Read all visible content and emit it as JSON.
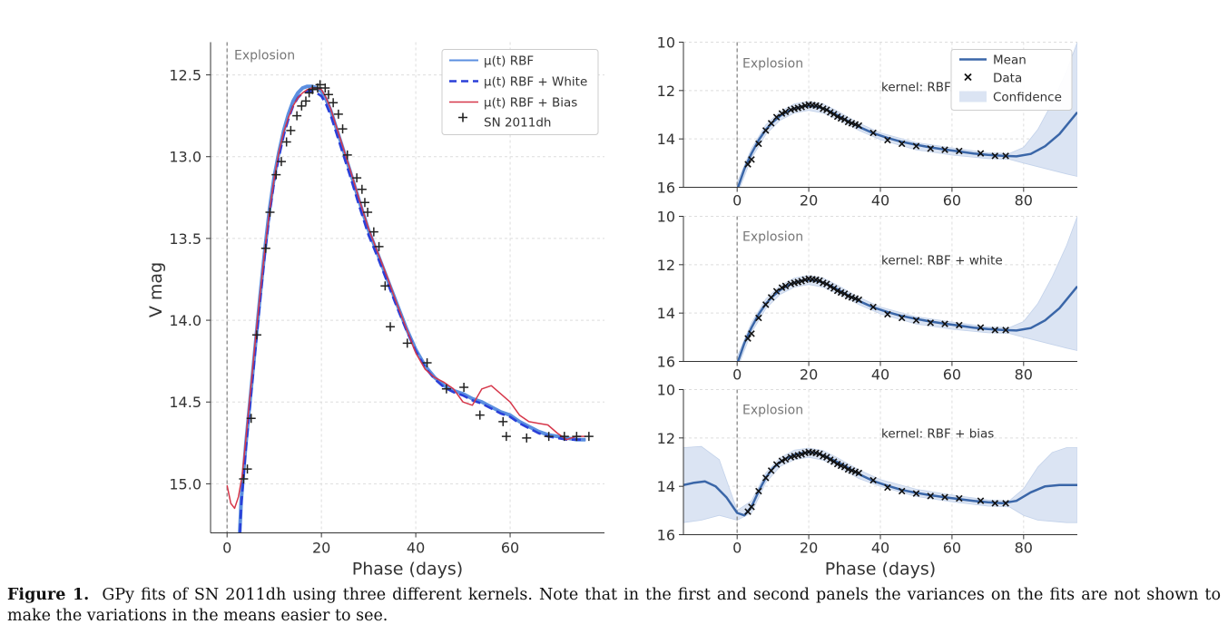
{
  "caption": {
    "label": "Figure 1.",
    "text": "GPy fits of SN 2011dh using three different kernels. Note that in the first and second panels the variances on the fits are not shown to make the variations in the means easier to see."
  },
  "colors": {
    "rbf": "#5b8fe0",
    "white": "#2a3fd8",
    "bias": "#d6374a",
    "mean": "#3a66a8",
    "band": "#dbe4f3",
    "marker": "#222222",
    "explosion": "#888888"
  },
  "chart_data": [
    {
      "type": "line",
      "panel": "main",
      "xlabel": "Phase (days)",
      "ylabel": "V mag",
      "xlim": [
        -3.5,
        80
      ],
      "ylim": [
        15.3,
        12.3
      ],
      "y_inverted": true,
      "xticks": [
        0,
        20,
        40,
        60
      ],
      "yticks": [
        12.5,
        13.0,
        13.5,
        14.0,
        14.5,
        15.0
      ],
      "ytick_labels": [
        "12.5",
        "13.0",
        "13.5",
        "14.0",
        "14.5",
        "15.0"
      ],
      "grid": true,
      "legend_position": "top-right",
      "annotation": "Explosion",
      "explosion_x": 0,
      "series": [
        {
          "name": "μ(t) RBF",
          "style": "solid",
          "x": [
            2.6,
            3,
            4,
            5,
            6,
            7,
            8,
            9,
            10,
            11,
            12,
            13,
            14,
            15,
            16,
            17,
            18,
            19,
            20,
            21,
            22,
            24,
            26,
            28,
            30,
            32,
            34,
            36,
            38,
            40,
            42,
            44,
            46,
            48,
            50,
            52,
            54,
            56,
            58,
            60,
            62,
            64,
            66,
            68,
            70,
            72,
            74,
            76
          ],
          "y": [
            15.35,
            15.1,
            14.75,
            14.45,
            14.15,
            13.85,
            13.57,
            13.32,
            13.12,
            12.97,
            12.84,
            12.74,
            12.66,
            12.61,
            12.58,
            12.57,
            12.57,
            12.58,
            12.6,
            12.65,
            12.72,
            12.9,
            13.08,
            13.27,
            13.45,
            13.6,
            13.75,
            13.9,
            14.05,
            14.18,
            14.28,
            14.35,
            14.4,
            14.43,
            14.45,
            14.48,
            14.5,
            14.53,
            14.56,
            14.58,
            14.62,
            14.65,
            14.68,
            14.7,
            14.71,
            14.72,
            14.73,
            14.73
          ]
        },
        {
          "name": "μ(t) RBF + White",
          "style": "dashed",
          "x": [
            2.6,
            3,
            4,
            5,
            6,
            7,
            8,
            9,
            10,
            11,
            12,
            13,
            14,
            15,
            16,
            17,
            18,
            19,
            20,
            21,
            22,
            24,
            26,
            28,
            30,
            32,
            34,
            36,
            38,
            40,
            42,
            44,
            46,
            48,
            50,
            52,
            54,
            56,
            58,
            60,
            62,
            64,
            66,
            68,
            70,
            72,
            74,
            76
          ],
          "y": [
            15.38,
            15.13,
            14.78,
            14.48,
            14.18,
            13.88,
            13.6,
            13.35,
            13.15,
            13.0,
            12.87,
            12.77,
            12.69,
            12.64,
            12.61,
            12.6,
            12.6,
            12.61,
            12.63,
            12.68,
            12.75,
            12.93,
            13.11,
            13.3,
            13.48,
            13.62,
            13.77,
            13.92,
            14.06,
            14.19,
            14.29,
            14.36,
            14.41,
            14.44,
            14.46,
            14.49,
            14.51,
            14.54,
            14.57,
            14.59,
            14.63,
            14.66,
            14.69,
            14.71,
            14.72,
            14.73,
            14.73,
            14.73
          ]
        },
        {
          "name": "μ(t) RBF + Bias",
          "style": "solid",
          "x": [
            0,
            0.8,
            1.6,
            2.4,
            3.2,
            4,
            5,
            6,
            7,
            8,
            9,
            10,
            11,
            12,
            13,
            14,
            15,
            16,
            17,
            18,
            19,
            20,
            21,
            22,
            24,
            26,
            28,
            30,
            32,
            34,
            36,
            38,
            40,
            42,
            44,
            46,
            48,
            50,
            52,
            54,
            56,
            58,
            60,
            62,
            64,
            66,
            68,
            70,
            72,
            74,
            76
          ],
          "y": [
            15.01,
            15.12,
            15.15,
            15.08,
            14.95,
            14.72,
            14.42,
            14.12,
            13.84,
            13.57,
            13.33,
            13.13,
            12.97,
            12.85,
            12.76,
            12.69,
            12.64,
            12.61,
            12.59,
            12.58,
            12.58,
            12.59,
            12.64,
            12.71,
            12.89,
            13.07,
            13.26,
            13.44,
            13.59,
            13.74,
            13.9,
            14.05,
            14.2,
            14.3,
            14.35,
            14.38,
            14.42,
            14.5,
            14.52,
            14.42,
            14.4,
            14.45,
            14.5,
            14.58,
            14.62,
            14.63,
            14.64,
            14.69,
            14.73,
            14.71,
            14.71
          ]
        }
      ],
      "data_series": {
        "name": "SN 2011dh",
        "marker": "+",
        "x": [
          3.5,
          4.3,
          5.1,
          6.3,
          8.2,
          9.1,
          10.4,
          11.5,
          12.6,
          13.5,
          14.8,
          15.8,
          16.7,
          17.4,
          18.1,
          19.2,
          19.7,
          20.8,
          21.5,
          22.5,
          23.6,
          24.5,
          25.5,
          27.5,
          28.6,
          29.2,
          29.8,
          31.1,
          32.2,
          33.5,
          34.6,
          38.2,
          42.4,
          46.5,
          50.2,
          53.6,
          58.5,
          59.2,
          63.5,
          68.2,
          71.5,
          74.1,
          76.7
        ],
        "y": [
          14.97,
          14.91,
          14.6,
          14.09,
          13.56,
          13.34,
          13.11,
          13.03,
          12.91,
          12.84,
          12.75,
          12.69,
          12.66,
          12.61,
          12.59,
          12.58,
          12.56,
          12.58,
          12.62,
          12.67,
          12.74,
          12.83,
          12.99,
          13.13,
          13.2,
          13.28,
          13.34,
          13.46,
          13.55,
          13.79,
          14.04,
          14.14,
          14.26,
          14.42,
          14.41,
          14.58,
          14.62,
          14.71,
          14.72,
          14.71,
          14.71,
          14.71,
          14.71
        ]
      }
    },
    {
      "type": "line",
      "panel": "kernel-rbf",
      "kernel_label": "kernel: RBF",
      "xlim": [
        -15,
        95
      ],
      "ylim": [
        16,
        10
      ],
      "y_inverted": true,
      "xticks": [
        0,
        20,
        40,
        60,
        80
      ],
      "yticks": [
        10,
        12,
        14,
        16
      ],
      "annotation": "Explosion",
      "explosion_x": 0,
      "grid": true,
      "legend": [
        "Mean",
        "Data",
        "Confidence"
      ],
      "legend_position": "top-right",
      "mean": {
        "x": [
          0,
          2,
          4,
          6,
          8,
          10,
          12,
          14,
          16,
          18,
          20,
          22,
          24,
          26,
          28,
          30,
          34,
          38,
          42,
          46,
          50,
          54,
          58,
          62,
          66,
          70,
          74,
          78,
          82,
          86,
          90,
          95
        ],
        "y": [
          16.1,
          15.25,
          14.6,
          14.05,
          13.62,
          13.3,
          13.05,
          12.87,
          12.74,
          12.66,
          12.63,
          12.66,
          12.74,
          12.86,
          13.02,
          13.18,
          13.5,
          13.76,
          13.96,
          14.12,
          14.24,
          14.35,
          14.44,
          14.52,
          14.6,
          14.66,
          14.7,
          14.72,
          14.62,
          14.3,
          13.8,
          12.9
        ]
      },
      "confidence": {
        "x": [
          0,
          4,
          8,
          12,
          16,
          20,
          24,
          28,
          34,
          40,
          50,
          60,
          70,
          76,
          80,
          84,
          88,
          92,
          95
        ],
        "lower": [
          15.8,
          14.4,
          13.42,
          12.87,
          12.55,
          12.44,
          12.55,
          12.85,
          13.35,
          13.75,
          14.15,
          14.37,
          14.57,
          14.6,
          14.35,
          13.6,
          12.5,
          11.2,
          10.0
        ],
        "upper": [
          16.3,
          14.8,
          13.82,
          13.23,
          12.93,
          12.82,
          12.93,
          13.19,
          13.65,
          14.03,
          14.45,
          14.67,
          14.81,
          14.84,
          15.0,
          15.15,
          15.3,
          15.45,
          15.55
        ]
      },
      "data_x": [
        3,
        4,
        6,
        8,
        9.5,
        11,
        12.5,
        13.5,
        15,
        16,
        17,
        18,
        19,
        20,
        21,
        22,
        23,
        24,
        25,
        26,
        27,
        28,
        29,
        30,
        31,
        32,
        33,
        34,
        38,
        42,
        46,
        50,
        54,
        58,
        62,
        68,
        72,
        75
      ],
      "data_y": [
        15.05,
        14.85,
        14.2,
        13.65,
        13.35,
        13.1,
        12.95,
        12.88,
        12.8,
        12.75,
        12.72,
        12.68,
        12.62,
        12.58,
        12.6,
        12.62,
        12.66,
        12.75,
        12.8,
        12.9,
        12.98,
        13.08,
        13.15,
        13.2,
        13.3,
        13.35,
        13.4,
        13.45,
        13.75,
        14.05,
        14.2,
        14.3,
        14.4,
        14.45,
        14.5,
        14.6,
        14.7,
        14.7
      ]
    },
    {
      "type": "line",
      "panel": "kernel-rbf-white",
      "kernel_label": "kernel: RBF + white",
      "xlim": [
        -15,
        95
      ],
      "ylim": [
        16,
        10
      ],
      "y_inverted": true,
      "xticks": [
        0,
        20,
        40,
        60,
        80
      ],
      "yticks": [
        10,
        12,
        14,
        16
      ],
      "annotation": "Explosion",
      "explosion_x": 0,
      "grid": true,
      "mean": {
        "x": [
          0,
          2,
          4,
          6,
          8,
          10,
          12,
          14,
          16,
          18,
          20,
          22,
          24,
          26,
          28,
          30,
          34,
          38,
          42,
          46,
          50,
          54,
          58,
          62,
          66,
          70,
          74,
          78,
          82,
          86,
          90,
          95
        ],
        "y": [
          16.1,
          15.25,
          14.6,
          14.05,
          13.62,
          13.3,
          13.05,
          12.87,
          12.74,
          12.66,
          12.63,
          12.66,
          12.74,
          12.86,
          13.02,
          13.18,
          13.5,
          13.76,
          13.96,
          14.12,
          14.24,
          14.35,
          14.44,
          14.52,
          14.6,
          14.66,
          14.7,
          14.72,
          14.62,
          14.3,
          13.8,
          12.9
        ]
      },
      "confidence": {
        "x": [
          0,
          4,
          8,
          12,
          16,
          20,
          24,
          28,
          34,
          40,
          50,
          60,
          70,
          76,
          80,
          84,
          88,
          92,
          95
        ],
        "lower": [
          15.8,
          14.4,
          13.42,
          12.87,
          12.55,
          12.44,
          12.55,
          12.85,
          13.35,
          13.75,
          14.15,
          14.37,
          14.57,
          14.6,
          14.35,
          13.6,
          12.5,
          11.2,
          10.0
        ],
        "upper": [
          16.3,
          14.8,
          13.82,
          13.23,
          12.93,
          12.82,
          12.93,
          13.19,
          13.65,
          14.03,
          14.45,
          14.67,
          14.81,
          14.84,
          15.0,
          15.15,
          15.3,
          15.45,
          15.55
        ]
      },
      "data_x": [
        3,
        4,
        6,
        8,
        9.5,
        11,
        12.5,
        13.5,
        15,
        16,
        17,
        18,
        19,
        20,
        21,
        22,
        23,
        24,
        25,
        26,
        27,
        28,
        29,
        30,
        31,
        32,
        33,
        34,
        38,
        42,
        46,
        50,
        54,
        58,
        62,
        68,
        72,
        75
      ],
      "data_y": [
        15.05,
        14.85,
        14.2,
        13.65,
        13.35,
        13.1,
        12.95,
        12.88,
        12.8,
        12.75,
        12.72,
        12.68,
        12.62,
        12.58,
        12.6,
        12.62,
        12.66,
        12.75,
        12.8,
        12.9,
        12.98,
        13.08,
        13.15,
        13.2,
        13.3,
        13.35,
        13.4,
        13.45,
        13.75,
        14.05,
        14.2,
        14.3,
        14.4,
        14.45,
        14.5,
        14.6,
        14.7,
        14.7
      ]
    },
    {
      "type": "line",
      "panel": "kernel-rbf-bias",
      "kernel_label": "kernel: RBF + bias",
      "xlabel": "Phase (days)",
      "xlim": [
        -15,
        95
      ],
      "ylim": [
        16,
        10
      ],
      "y_inverted": true,
      "xticks": [
        0,
        20,
        40,
        60,
        80
      ],
      "yticks": [
        10,
        12,
        14,
        16
      ],
      "annotation": "Explosion",
      "explosion_x": 0,
      "grid": true,
      "mean": {
        "x": [
          -15,
          -12,
          -9,
          -6,
          -3,
          0,
          2,
          4,
          6,
          8,
          10,
          12,
          14,
          16,
          18,
          20,
          22,
          24,
          26,
          28,
          30,
          34,
          38,
          42,
          46,
          50,
          54,
          58,
          62,
          66,
          70,
          74,
          78,
          82,
          86,
          90,
          95
        ],
        "y": [
          13.95,
          13.85,
          13.8,
          14.0,
          14.45,
          15.1,
          15.2,
          14.85,
          14.2,
          13.65,
          13.25,
          13.0,
          12.82,
          12.7,
          12.63,
          12.6,
          12.63,
          12.72,
          12.85,
          13.0,
          13.15,
          13.5,
          13.78,
          13.98,
          14.15,
          14.27,
          14.37,
          14.45,
          14.53,
          14.6,
          14.66,
          14.7,
          14.6,
          14.25,
          14.0,
          13.95,
          13.95
        ]
      },
      "confidence": {
        "x": [
          -15,
          -10,
          -5,
          0,
          4,
          8,
          12,
          16,
          20,
          24,
          28,
          34,
          40,
          50,
          60,
          70,
          76,
          80,
          84,
          88,
          92,
          95
        ],
        "lower": [
          12.4,
          12.35,
          12.9,
          15.0,
          14.6,
          13.45,
          12.82,
          12.5,
          12.42,
          12.52,
          12.82,
          13.32,
          13.72,
          14.12,
          14.36,
          14.56,
          14.6,
          14.1,
          13.2,
          12.6,
          12.4,
          12.4
        ],
        "upper": [
          15.5,
          15.4,
          15.2,
          15.4,
          15.1,
          13.85,
          13.18,
          12.9,
          12.8,
          12.92,
          13.18,
          13.68,
          14.0,
          14.42,
          14.64,
          14.82,
          14.85,
          15.2,
          15.4,
          15.45,
          15.5,
          15.5
        ]
      },
      "data_x": [
        3,
        4,
        6,
        8,
        9.5,
        11,
        12.5,
        13.5,
        15,
        16,
        17,
        18,
        19,
        20,
        21,
        22,
        23,
        24,
        25,
        26,
        27,
        28,
        29,
        30,
        31,
        32,
        33,
        34,
        38,
        42,
        46,
        50,
        54,
        58,
        62,
        68,
        72,
        75
      ],
      "data_y": [
        15.05,
        14.85,
        14.2,
        13.65,
        13.35,
        13.1,
        12.95,
        12.88,
        12.8,
        12.75,
        12.72,
        12.68,
        12.62,
        12.58,
        12.6,
        12.62,
        12.66,
        12.75,
        12.8,
        12.9,
        12.98,
        13.08,
        13.15,
        13.2,
        13.3,
        13.35,
        13.4,
        13.45,
        13.75,
        14.05,
        14.2,
        14.3,
        14.4,
        14.45,
        14.5,
        14.6,
        14.7,
        14.7
      ]
    }
  ]
}
